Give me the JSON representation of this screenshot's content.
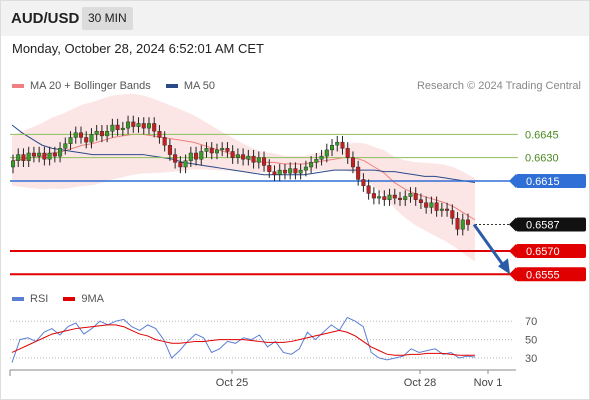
{
  "header": {
    "symbol": "AUD/USD",
    "timeframe": "30 MIN"
  },
  "datetime": "Monday, October 28, 2024 6:52:01 AM CET",
  "legend": {
    "ma20_label": "MA 20 + Bollinger Bands",
    "ma20_color": "#f08080",
    "ma50_label": "MA 50",
    "ma50_color": "#2a4a8a"
  },
  "copyright": "Research © 2024 Trading Central",
  "rsi_legend": {
    "rsi_label": "RSI",
    "rsi_color": "#5b7fd6",
    "ma9_label": "9MA",
    "ma9_color": "#e00000"
  },
  "chart_data": {
    "type": "candlestick",
    "symbol": "AUD/USD",
    "price_axis_labels": [
      "0.6645",
      "0.6630",
      "0.6615",
      "0.6587",
      "0.6570",
      "0.6555"
    ],
    "levels": [
      {
        "price": 0.6645,
        "label": "0.6645",
        "kind": "target",
        "color": "#8fbf5a"
      },
      {
        "price": 0.663,
        "label": "0.6630",
        "kind": "target",
        "color": "#8fbf5a"
      },
      {
        "price": 0.6615,
        "label": "0.6615",
        "kind": "pivot",
        "color": "#2f6fd6"
      },
      {
        "price": 0.6587,
        "label": "0.6587",
        "kind": "last",
        "color": "#111111"
      },
      {
        "price": 0.657,
        "label": "0.6570",
        "kind": "support",
        "color": "#e00000"
      },
      {
        "price": 0.6555,
        "label": "0.6555",
        "kind": "support",
        "color": "#e00000"
      }
    ],
    "x_ticks": [
      "Oct 25",
      "Oct 28",
      "Nov 1"
    ],
    "candles": [
      [
        0.6624,
        0.6628
      ],
      [
        0.6628,
        0.6632
      ],
      [
        0.6632,
        0.6628
      ],
      [
        0.6628,
        0.6633
      ],
      [
        0.6633,
        0.6631
      ],
      [
        0.6631,
        0.6633
      ],
      [
        0.6633,
        0.6629
      ],
      [
        0.6629,
        0.6633
      ],
      [
        0.6633,
        0.6631
      ],
      [
        0.6631,
        0.6636
      ],
      [
        0.6636,
        0.6639
      ],
      [
        0.6639,
        0.6643
      ],
      [
        0.6643,
        0.6646
      ],
      [
        0.6646,
        0.6643
      ],
      [
        0.6643,
        0.664
      ],
      [
        0.664,
        0.6645
      ],
      [
        0.6645,
        0.6647
      ],
      [
        0.6647,
        0.6644
      ],
      [
        0.6644,
        0.6647
      ],
      [
        0.6647,
        0.6651
      ],
      [
        0.6651,
        0.6648
      ],
      [
        0.6648,
        0.6649
      ],
      [
        0.6649,
        0.6653
      ],
      [
        0.6653,
        0.665
      ],
      [
        0.665,
        0.6652
      ],
      [
        0.6652,
        0.6649
      ],
      [
        0.6649,
        0.6652
      ],
      [
        0.6652,
        0.6647
      ],
      [
        0.6647,
        0.6643
      ],
      [
        0.6643,
        0.6638
      ],
      [
        0.6638,
        0.6632
      ],
      [
        0.6632,
        0.6627
      ],
      [
        0.6627,
        0.6624
      ],
      [
        0.6624,
        0.6628
      ],
      [
        0.6628,
        0.6633
      ],
      [
        0.6633,
        0.6629
      ],
      [
        0.6629,
        0.6634
      ],
      [
        0.6634,
        0.6636
      ],
      [
        0.6636,
        0.6633
      ],
      [
        0.6633,
        0.6635
      ],
      [
        0.6635,
        0.6636
      ],
      [
        0.6636,
        0.6634
      ],
      [
        0.6634,
        0.663
      ],
      [
        0.663,
        0.6632
      ],
      [
        0.6632,
        0.6629
      ],
      [
        0.6629,
        0.6631
      ],
      [
        0.6631,
        0.6627
      ],
      [
        0.6627,
        0.663
      ],
      [
        0.663,
        0.6625
      ],
      [
        0.6625,
        0.6621
      ],
      [
        0.6621,
        0.6619
      ],
      [
        0.6619,
        0.6622
      ],
      [
        0.6622,
        0.662
      ],
      [
        0.662,
        0.6623
      ],
      [
        0.6623,
        0.662
      ],
      [
        0.662,
        0.6622
      ],
      [
        0.6622,
        0.6624
      ],
      [
        0.6624,
        0.6627
      ],
      [
        0.6627,
        0.6629
      ],
      [
        0.6629,
        0.6631
      ],
      [
        0.6631,
        0.6635
      ],
      [
        0.6635,
        0.6638
      ],
      [
        0.6638,
        0.664
      ],
      [
        0.664,
        0.6636
      ],
      [
        0.6636,
        0.663
      ],
      [
        0.663,
        0.6624
      ],
      [
        0.6624,
        0.6616
      ],
      [
        0.6616,
        0.6612
      ],
      [
        0.6612,
        0.6607
      ],
      [
        0.6607,
        0.6604
      ],
      [
        0.6604,
        0.6605
      ],
      [
        0.6605,
        0.6603
      ],
      [
        0.6603,
        0.6606
      ],
      [
        0.6606,
        0.6604
      ],
      [
        0.6604,
        0.6603
      ],
      [
        0.6603,
        0.6605
      ],
      [
        0.6605,
        0.6607
      ],
      [
        0.6607,
        0.6603
      ],
      [
        0.6603,
        0.6601
      ],
      [
        0.6601,
        0.6598
      ],
      [
        0.6598,
        0.6601
      ],
      [
        0.6601,
        0.6596
      ],
      [
        0.6596,
        0.6597
      ],
      [
        0.6597,
        0.6596
      ],
      [
        0.6596,
        0.6591
      ],
      [
        0.6591,
        0.6584
      ],
      [
        0.6584,
        0.659
      ],
      [
        0.659,
        0.6587
      ]
    ],
    "ma20": [
      0.6628,
      0.6629,
      0.663,
      0.6631,
      0.6633,
      0.6634,
      0.6636,
      0.6638,
      0.6639,
      0.6641,
      0.6643,
      0.6644,
      0.6645,
      0.6645,
      0.6644,
      0.6643,
      0.6642,
      0.6641,
      0.664,
      0.6638,
      0.6636,
      0.6634,
      0.6632,
      0.663,
      0.6628,
      0.6627,
      0.6627,
      0.6626,
      0.6626,
      0.6626,
      0.6627,
      0.6628,
      0.6629,
      0.663,
      0.663,
      0.6628,
      0.6624,
      0.662,
      0.6614,
      0.661,
      0.6607,
      0.6605,
      0.6603,
      0.6601,
      0.6598,
      0.6594,
      0.659
    ],
    "ma50": [
      0.6651,
      0.6646,
      0.6642,
      0.6638,
      0.6636,
      0.6635,
      0.6634,
      0.6633,
      0.6632,
      0.6632,
      0.6632,
      0.6632,
      0.6632,
      0.6632,
      0.6631,
      0.663,
      0.6629,
      0.6627,
      0.6626,
      0.6625,
      0.6624,
      0.6623,
      0.6622,
      0.6621,
      0.662,
      0.6619,
      0.6619,
      0.6619,
      0.6619,
      0.6619,
      0.662,
      0.6621,
      0.6622,
      0.6622,
      0.6622,
      0.6622,
      0.6622,
      0.6621,
      0.6621,
      0.662,
      0.6619,
      0.6618,
      0.6618,
      0.6617,
      0.6616,
      0.6615,
      0.6614
    ],
    "forecast_arrow_target": 0.6555,
    "rsi": {
      "axis_labels": [
        "70",
        "50",
        "30"
      ],
      "rsi_values": [
        25,
        50,
        52,
        48,
        58,
        62,
        55,
        64,
        68,
        56,
        62,
        70,
        66,
        70,
        72,
        64,
        60,
        66,
        62,
        50,
        30,
        38,
        48,
        56,
        52,
        36,
        40,
        48,
        46,
        52,
        50,
        55,
        42,
        48,
        36,
        34,
        40,
        58,
        50,
        58,
        66,
        60,
        74,
        70,
        64,
        36,
        30,
        28,
        30,
        32,
        40,
        36,
        38,
        40,
        34,
        36,
        30,
        32,
        31
      ],
      "ma9_values": [
        36,
        40,
        44,
        48,
        52,
        56,
        58,
        60,
        62,
        63,
        64,
        65,
        66,
        66,
        64,
        60,
        56,
        54,
        50,
        48,
        46,
        46,
        47,
        48,
        48,
        49,
        50,
        50,
        50,
        50,
        49,
        48,
        47,
        47,
        47,
        48,
        50,
        52,
        54,
        56,
        58,
        60,
        58,
        54,
        48,
        42,
        38,
        34,
        33,
        33,
        34,
        34,
        35,
        35,
        35,
        34,
        33,
        33,
        33
      ]
    }
  }
}
